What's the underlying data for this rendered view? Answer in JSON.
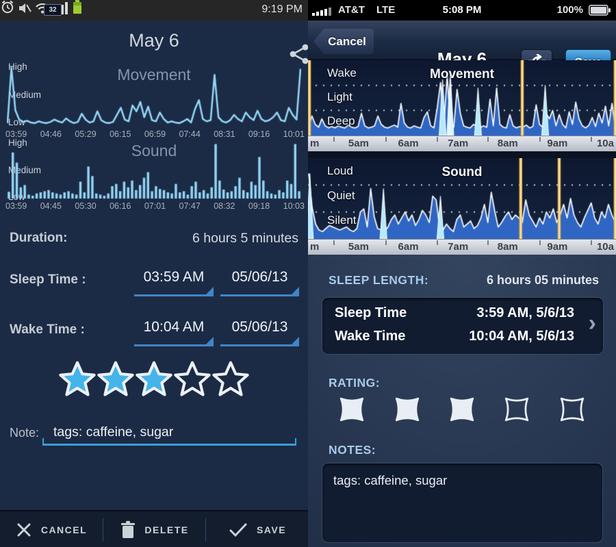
{
  "left": {
    "statusbar": {
      "time": "9:19 PM",
      "widget_label": "32"
    },
    "header": {
      "title": "May 6"
    },
    "duration": {
      "label": "Duration:",
      "value": "6 hours 5 minutes"
    },
    "sleep_time": {
      "label": "Sleep Time :",
      "time": "03:59 AM",
      "date": "05/06/13"
    },
    "wake_time": {
      "label": "Wake Time :",
      "time": "10:04 AM",
      "date": "05/06/13"
    },
    "rating": {
      "filled": 3,
      "total": 5
    },
    "note": {
      "label": "Note:",
      "value": "tags: caffeine, sugar"
    },
    "actions": {
      "cancel": "CANCEL",
      "delete": "DELETE",
      "save": "SAVE"
    }
  },
  "right": {
    "statusbar": {
      "carrier": "AT&T",
      "network": "LTE",
      "time": "5:08 PM",
      "battery": "100%"
    },
    "navbar": {
      "cancel": "Cancel",
      "title": "May 6",
      "save": "Save"
    },
    "sleep_length": {
      "label": "SLEEP LENGTH:",
      "value": "6 hours 05 minutes"
    },
    "times_card": {
      "rows": [
        {
          "label": "Sleep Time",
          "value": "3:59 AM, 5/6/13"
        },
        {
          "label": "Wake Time",
          "value": "10:04 AM, 5/6/13"
        }
      ],
      "chevron": "›"
    },
    "rating": {
      "label": "RATING:",
      "filled": 3,
      "total": 5
    },
    "notes": {
      "label": "NOTES:",
      "value": "tags: caffeine, sugar"
    }
  },
  "colors": {
    "left_accent": "#92d4f4",
    "spinner_blue": "#3f86c8",
    "star_blue": "#45b4ea",
    "area_blue": "#2f66c4",
    "cyan": "#b5eafc",
    "yellow": "#eab53e",
    "save_button_blue": "#2f86c6",
    "label_blue": "#a9c9e9",
    "battery_green": "#9ccc2e"
  },
  "chart_data": [
    {
      "id": "left-movement",
      "type": "line",
      "title": "Movement",
      "y_ticks": [
        "High",
        "Medium",
        "Low"
      ],
      "x_ticks": [
        "03:59",
        "04:46",
        "05:29",
        "06:15",
        "06:59",
        "07:44",
        "08:31",
        "09:16",
        "10:01"
      ],
      "color": "#92d4f4",
      "ylim": [
        0,
        100
      ],
      "values": [
        6,
        100,
        28,
        12,
        8,
        10,
        7,
        6,
        9,
        7,
        6,
        8,
        12,
        9,
        7,
        14,
        9,
        6,
        8,
        22,
        12,
        7,
        9,
        26,
        11,
        7,
        6,
        8,
        20,
        32,
        12,
        9,
        36,
        26,
        42,
        16,
        34,
        11,
        9,
        24,
        13,
        7,
        9,
        7,
        6,
        9,
        13,
        7,
        30,
        45,
        13,
        9,
        11,
        88,
        16,
        9,
        7,
        11,
        20,
        13,
        9,
        24,
        16,
        11,
        27,
        13,
        9,
        11,
        16,
        24,
        11,
        9,
        32,
        20,
        12,
        98
      ]
    },
    {
      "id": "left-sound",
      "type": "bar",
      "title": "Sound",
      "y_ticks": [
        "High",
        "Medium",
        "Low"
      ],
      "x_ticks": [
        "03:59",
        "04:45",
        "05:30",
        "06:16",
        "07:01",
        "07:47",
        "08:32",
        "09:18",
        "10:03"
      ],
      "color": "#92d4f4",
      "ylim": [
        0,
        100
      ],
      "values": [
        12,
        82,
        64,
        20,
        24,
        7,
        5,
        9,
        11,
        13,
        15,
        11,
        9,
        7,
        11,
        13,
        9,
        7,
        30,
        11,
        57,
        40,
        9,
        7,
        5,
        9,
        22,
        26,
        13,
        30,
        20,
        32,
        15,
        24,
        37,
        47,
        13,
        22,
        17,
        15,
        11,
        9,
        26,
        11,
        13,
        7,
        22,
        30,
        11,
        15,
        9,
        20,
        97,
        32,
        16,
        11,
        13,
        22,
        37,
        15,
        11,
        30,
        24,
        74,
        32,
        13,
        9,
        7,
        15,
        11,
        32,
        26,
        97,
        13
      ]
    },
    {
      "id": "right-movement",
      "type": "area",
      "title": "Movement",
      "y_ticks": [
        "Wake",
        "Light",
        "Deep"
      ],
      "x_ticks": [
        "m",
        "5am",
        "6am",
        "7am",
        "8am",
        "9am",
        "10a"
      ],
      "fill": "#2f66c4",
      "stroke": "#f2f5f9",
      "grid": true,
      "ylim": [
        0,
        100
      ],
      "values": [
        12,
        26,
        14,
        10,
        22,
        12,
        9,
        11,
        9,
        12,
        10,
        9,
        13,
        10,
        9,
        11,
        30,
        12,
        9,
        10,
        12,
        26,
        14,
        10,
        9,
        11,
        13,
        10,
        44,
        16,
        10,
        9,
        12,
        10,
        9,
        24,
        32,
        12,
        9,
        38,
        74,
        14,
        84,
        16,
        10,
        64,
        30,
        12,
        10,
        9,
        14,
        11,
        9,
        12,
        10,
        50,
        12,
        66,
        14,
        10,
        9,
        28,
        12,
        9,
        11,
        10,
        13,
        9,
        11,
        42,
        14,
        10,
        30,
        22,
        34,
        12,
        28,
        14,
        9,
        32,
        14,
        46,
        22,
        12,
        9,
        13,
        24,
        11,
        30,
        16,
        40,
        12,
        44,
        10
      ],
      "spikes": [
        {
          "x": 0.004,
          "h": 100,
          "color": "#eab53e"
        },
        {
          "x": 0.695,
          "h": 100,
          "color": "#eab53e"
        },
        {
          "x": 0.997,
          "h": 100,
          "color": "#eab53e"
        },
        {
          "x": 0.437,
          "h": 78,
          "color": "#b5eafc"
        },
        {
          "x": 0.462,
          "h": 88,
          "color": "#dff6ff"
        },
        {
          "x": 0.552,
          "h": 66,
          "color": "#b5eafc"
        },
        {
          "x": 0.77,
          "h": 70,
          "color": "#b5eafc"
        }
      ]
    },
    {
      "id": "right-sound",
      "type": "area",
      "title": "Sound",
      "y_ticks": [
        "Loud",
        "Quiet",
        "Silent"
      ],
      "x_ticks": [
        "m",
        "5am",
        "6am",
        "7am",
        "8am",
        "9am",
        "10a"
      ],
      "fill": "#2f66c4",
      "stroke": "#f2f5f9",
      "grid": true,
      "ylim": [
        0,
        100
      ],
      "values": [
        85,
        40,
        18,
        10,
        8,
        12,
        16,
        14,
        12,
        10,
        12,
        14,
        10,
        8,
        12,
        34,
        38,
        14,
        65,
        28,
        12,
        10,
        8,
        14,
        24,
        30,
        18,
        26,
        34,
        22,
        30,
        16,
        24,
        36,
        30,
        20,
        55,
        50,
        14,
        10,
        18,
        12,
        8,
        24,
        30,
        14,
        18,
        22,
        12,
        16,
        26,
        44,
        20,
        60,
        35,
        14,
        20,
        28,
        34,
        24,
        30,
        26,
        20,
        50,
        30,
        22,
        14,
        26,
        18,
        34,
        26,
        38,
        20,
        30,
        44,
        26,
        52,
        30,
        20,
        14,
        26,
        36,
        46,
        26,
        18,
        34,
        26,
        44,
        30,
        20
      ],
      "spikes": [
        {
          "x": 0.006,
          "h": 85,
          "color": "#b5eafc"
        },
        {
          "x": 0.245,
          "h": 65,
          "color": "#b5eafc"
        },
        {
          "x": 0.43,
          "h": 55,
          "color": "#b5eafc"
        },
        {
          "x": 0.69,
          "h": 100,
          "color": "#eab53e"
        },
        {
          "x": 0.815,
          "h": 97,
          "color": "#eab53e"
        },
        {
          "x": 0.997,
          "h": 92,
          "color": "#eab53e"
        }
      ]
    }
  ]
}
